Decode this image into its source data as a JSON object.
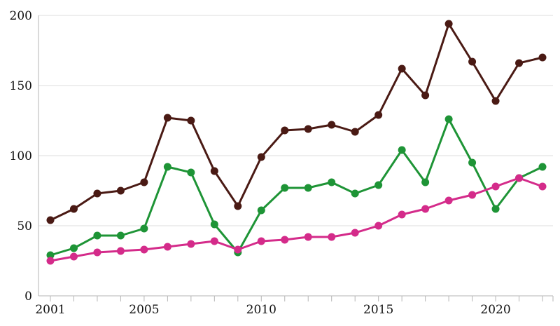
{
  "chart_data": {
    "type": "line",
    "title": "",
    "xlabel": "",
    "ylabel": "",
    "x": [
      2001,
      2002,
      2003,
      2004,
      2005,
      2006,
      2007,
      2008,
      2009,
      2010,
      2011,
      2012,
      2013,
      2014,
      2015,
      2016,
      2017,
      2018,
      2019,
      2020,
      2021,
      2022
    ],
    "xlim": [
      2001,
      2022
    ],
    "ylim": [
      0,
      200
    ],
    "x_ticks": [
      2001,
      2005,
      2010,
      2015,
      2020
    ],
    "y_ticks": [
      0,
      50,
      100,
      150,
      200
    ],
    "x_tick_labels": [
      "2001",
      "2005",
      "2010",
      "2015",
      "2020"
    ],
    "y_tick_labels": [
      "0",
      "50",
      "100",
      "150",
      "200"
    ],
    "grid": "horizontal",
    "legend": "none",
    "series": [
      {
        "color": "#4a1a14",
        "values": [
          54,
          62,
          73,
          75,
          81,
          127,
          125,
          89,
          64,
          99,
          118,
          119,
          122,
          117,
          129,
          162,
          143,
          194,
          167,
          139,
          166,
          170
        ]
      },
      {
        "color": "#1e9436",
        "values": [
          29,
          34,
          43,
          43,
          48,
          92,
          88,
          51,
          31,
          61,
          77,
          77,
          81,
          73,
          79,
          104,
          81,
          126,
          95,
          62,
          84,
          92
        ]
      },
      {
        "color": "#d42b8a",
        "values": [
          25,
          28,
          31,
          32,
          33,
          35,
          37,
          39,
          33,
          39,
          40,
          42,
          42,
          45,
          50,
          58,
          62,
          68,
          72,
          78,
          84,
          78
        ]
      }
    ]
  }
}
